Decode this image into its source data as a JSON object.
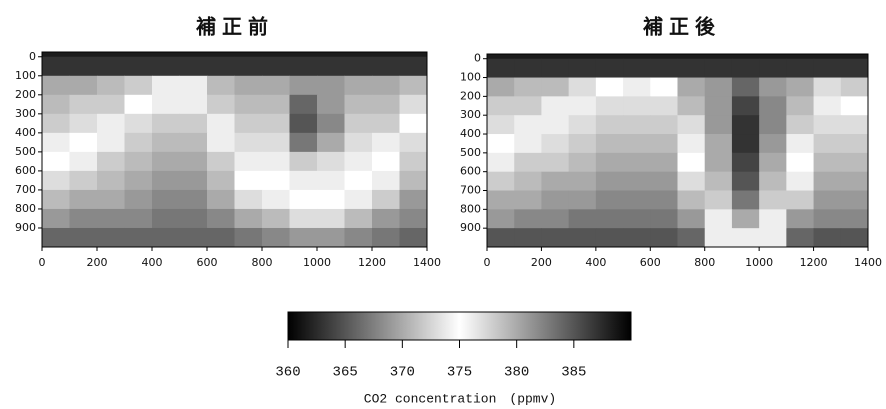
{
  "chart_data": [
    {
      "type": "heatmap",
      "title": "補正前",
      "x": [
        50,
        150,
        250,
        350,
        450,
        550,
        650,
        750,
        850,
        950,
        1050,
        1150,
        1250,
        1350
      ],
      "y": [
        50,
        150,
        250,
        350,
        450,
        550,
        650,
        750,
        850,
        950
      ],
      "values": [
        [
          387,
          387,
          387,
          387,
          387,
          387,
          387,
          387,
          387,
          387,
          387,
          387,
          387,
          387
        ],
        [
          380,
          380,
          379,
          378,
          376,
          376,
          379,
          380,
          380,
          381,
          381,
          380,
          380,
          379
        ],
        [
          379,
          378,
          378,
          375,
          374,
          374,
          378,
          379,
          379,
          384,
          381,
          379,
          379,
          377
        ],
        [
          378,
          377,
          376,
          373,
          372,
          372,
          376,
          378,
          378,
          385,
          382,
          378,
          378,
          375
        ],
        [
          376,
          375,
          374,
          372,
          371,
          371,
          374,
          377,
          377,
          383,
          380,
          377,
          376,
          373
        ],
        [
          375,
          374,
          372,
          371,
          370,
          370,
          372,
          376,
          376,
          378,
          377,
          376,
          375,
          372
        ],
        [
          373,
          372,
          371,
          370,
          369,
          369,
          371,
          375,
          375,
          376,
          376,
          375,
          374,
          371
        ],
        [
          371,
          370,
          370,
          369,
          368,
          368,
          370,
          373,
          374,
          375,
          375,
          374,
          372,
          369
        ],
        [
          369,
          368,
          368,
          368,
          367,
          367,
          368,
          370,
          371,
          373,
          373,
          371,
          369,
          368
        ],
        [
          366,
          366,
          366,
          366,
          366,
          366,
          366,
          367,
          368,
          369,
          369,
          368,
          367,
          366
        ]
      ],
      "xlim": [
        0,
        1400
      ],
      "xticks": [
        0,
        200,
        400,
        600,
        800,
        1000,
        1200,
        1400
      ],
      "ylim": [
        -25,
        1000
      ],
      "yticks": [
        0,
        100,
        200,
        300,
        400,
        500,
        600,
        700,
        800,
        900
      ]
    },
    {
      "type": "heatmap",
      "title": "補正後",
      "x": [
        50,
        150,
        250,
        350,
        450,
        550,
        650,
        750,
        850,
        950,
        1050,
        1150,
        1250,
        1350
      ],
      "y": [
        50,
        150,
        250,
        350,
        450,
        550,
        650,
        750,
        850,
        950
      ],
      "values": [
        [
          387,
          387,
          387,
          387,
          387,
          387,
          387,
          387,
          387,
          387,
          387,
          387,
          387,
          387
        ],
        [
          380,
          379,
          379,
          377,
          375,
          376,
          375,
          380,
          381,
          384,
          381,
          380,
          377,
          378
        ],
        [
          378,
          378,
          376,
          374,
          373,
          373,
          373,
          379,
          381,
          386,
          382,
          379,
          374,
          375
        ],
        [
          377,
          376,
          374,
          373,
          372,
          372,
          372,
          377,
          381,
          387,
          382,
          378,
          373,
          373
        ],
        [
          375,
          374,
          373,
          372,
          371,
          371,
          371,
          376,
          380,
          387,
          381,
          376,
          372,
          372
        ],
        [
          374,
          372,
          372,
          371,
          370,
          370,
          370,
          375,
          380,
          386,
          380,
          375,
          371,
          371
        ],
        [
          372,
          371,
          370,
          370,
          369,
          369,
          369,
          373,
          379,
          385,
          379,
          374,
          370,
          370
        ],
        [
          370,
          370,
          369,
          369,
          368,
          368,
          368,
          371,
          378,
          383,
          378,
          372,
          369,
          369
        ],
        [
          369,
          368,
          368,
          367,
          367,
          367,
          367,
          369,
          376,
          380,
          376,
          369,
          368,
          368
        ],
        [
          365,
          365,
          365,
          365,
          365,
          365,
          365,
          366,
          374,
          376,
          374,
          366,
          365,
          365
        ]
      ],
      "xlim": [
        0,
        1400
      ],
      "xticks": [
        0,
        200,
        400,
        600,
        800,
        1000,
        1200,
        1400
      ],
      "ylim": [
        -25,
        1000
      ],
      "yticks": [
        0,
        100,
        200,
        300,
        400,
        500,
        600,
        700,
        800,
        900
      ]
    },
    {
      "type": "colorbar",
      "label": "CO2 concentration　(ppmv)",
      "zlim": [
        360,
        390
      ],
      "zticks": [
        360,
        365,
        370,
        375,
        380,
        385
      ],
      "colors": [
        "#000000",
        "#ffffff",
        "#000000"
      ]
    }
  ]
}
